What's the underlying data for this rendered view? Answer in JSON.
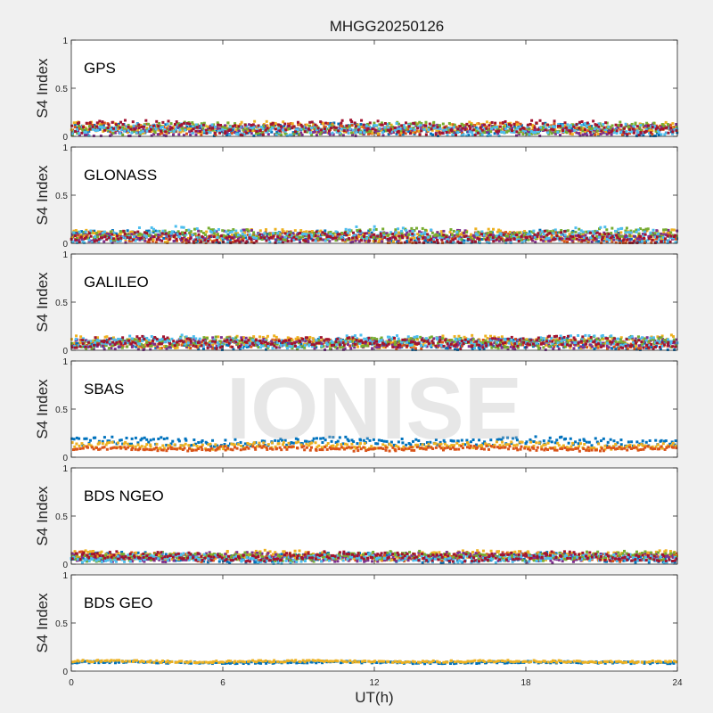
{
  "figure": {
    "title": "MHGG20250126",
    "xlabel": "UT(h)",
    "watermark": "IONISE"
  },
  "chart_data": [
    {
      "type": "scatter",
      "panel_label": "GPS",
      "ylabel": "S4 Index",
      "xlim": [
        0,
        24
      ],
      "ylim": [
        0,
        1
      ],
      "xticks": [
        0,
        6,
        12,
        18,
        24
      ],
      "yticks": [
        0,
        0.5,
        1
      ],
      "grid": false,
      "series": [
        {
          "color": "#0072BD",
          "baseline": 0.07,
          "noise": 0.05
        },
        {
          "color": "#D95319",
          "baseline": 0.08,
          "noise": 0.05
        },
        {
          "color": "#EDB120",
          "baseline": 0.09,
          "noise": 0.05
        },
        {
          "color": "#7E2F8E",
          "baseline": 0.06,
          "noise": 0.05
        },
        {
          "color": "#77AC30",
          "baseline": 0.08,
          "noise": 0.05
        },
        {
          "color": "#4DBEEE",
          "baseline": 0.07,
          "noise": 0.05
        },
        {
          "color": "#A2142F",
          "baseline": 0.09,
          "noise": 0.06
        }
      ]
    },
    {
      "type": "scatter",
      "panel_label": "GLONASS",
      "ylabel": "S4 Index",
      "xlim": [
        0,
        24
      ],
      "ylim": [
        0,
        1
      ],
      "xticks": [
        0,
        6,
        12,
        18,
        24
      ],
      "yticks": [
        0,
        0.5,
        1
      ],
      "grid": false,
      "series": [
        {
          "color": "#0072BD",
          "baseline": 0.07,
          "noise": 0.05
        },
        {
          "color": "#D95319",
          "baseline": 0.06,
          "noise": 0.05
        },
        {
          "color": "#EDB120",
          "baseline": 0.08,
          "noise": 0.05
        },
        {
          "color": "#7E2F8E",
          "baseline": 0.07,
          "noise": 0.05
        },
        {
          "color": "#77AC30",
          "baseline": 0.09,
          "noise": 0.05
        },
        {
          "color": "#4DBEEE",
          "baseline": 0.08,
          "noise": 0.07
        },
        {
          "color": "#A2142F",
          "baseline": 0.06,
          "noise": 0.05
        }
      ]
    },
    {
      "type": "scatter",
      "panel_label": "GALILEO",
      "ylabel": "S4 Index",
      "xlim": [
        0,
        24
      ],
      "ylim": [
        0,
        1
      ],
      "xticks": [
        0,
        6,
        12,
        18,
        24
      ],
      "yticks": [
        0,
        0.5,
        1
      ],
      "grid": false,
      "series": [
        {
          "color": "#0072BD",
          "baseline": 0.06,
          "noise": 0.05
        },
        {
          "color": "#D95319",
          "baseline": 0.07,
          "noise": 0.04
        },
        {
          "color": "#EDB120",
          "baseline": 0.09,
          "noise": 0.05
        },
        {
          "color": "#7E2F8E",
          "baseline": 0.07,
          "noise": 0.05
        },
        {
          "color": "#77AC30",
          "baseline": 0.08,
          "noise": 0.05
        },
        {
          "color": "#4DBEEE",
          "baseline": 0.09,
          "noise": 0.05
        },
        {
          "color": "#A2142F",
          "baseline": 0.08,
          "noise": 0.05
        }
      ]
    },
    {
      "type": "scatter",
      "panel_label": "SBAS",
      "ylabel": "S4 Index",
      "xlim": [
        0,
        24
      ],
      "ylim": [
        0,
        1
      ],
      "xticks": [
        0,
        6,
        12,
        18,
        24
      ],
      "yticks": [
        0,
        0.5,
        1
      ],
      "grid": false,
      "series": [
        {
          "color": "#0072BD",
          "baseline": 0.16,
          "noise": 0.04
        },
        {
          "color": "#EDB120",
          "baseline": 0.12,
          "noise": 0.03
        },
        {
          "color": "#D95319",
          "baseline": 0.09,
          "noise": 0.02
        }
      ]
    },
    {
      "type": "scatter",
      "panel_label": "BDS NGEO",
      "ylabel": "S4 Index",
      "xlim": [
        0,
        24
      ],
      "ylim": [
        0,
        1
      ],
      "xticks": [
        0,
        6,
        12,
        18,
        24
      ],
      "yticks": [
        0,
        0.5,
        1
      ],
      "grid": false,
      "series": [
        {
          "color": "#0072BD",
          "baseline": 0.07,
          "noise": 0.04
        },
        {
          "color": "#D95319",
          "baseline": 0.08,
          "noise": 0.04
        },
        {
          "color": "#EDB120",
          "baseline": 0.09,
          "noise": 0.04
        },
        {
          "color": "#7E2F8E",
          "baseline": 0.07,
          "noise": 0.04
        },
        {
          "color": "#77AC30",
          "baseline": 0.08,
          "noise": 0.04
        },
        {
          "color": "#4DBEEE",
          "baseline": 0.06,
          "noise": 0.04
        },
        {
          "color": "#A2142F",
          "baseline": 0.08,
          "noise": 0.04
        }
      ]
    },
    {
      "type": "scatter",
      "panel_label": "BDS GEO",
      "ylabel": "S4 Index",
      "xlim": [
        0,
        24
      ],
      "ylim": [
        0,
        1
      ],
      "xticks": [
        0,
        6,
        12,
        18,
        24
      ],
      "yticks": [
        0,
        0.5,
        1
      ],
      "grid": false,
      "series": [
        {
          "color": "#0072BD",
          "baseline": 0.09,
          "noise": 0.01
        },
        {
          "color": "#EDB120",
          "baseline": 0.1,
          "noise": 0.01
        }
      ]
    }
  ]
}
